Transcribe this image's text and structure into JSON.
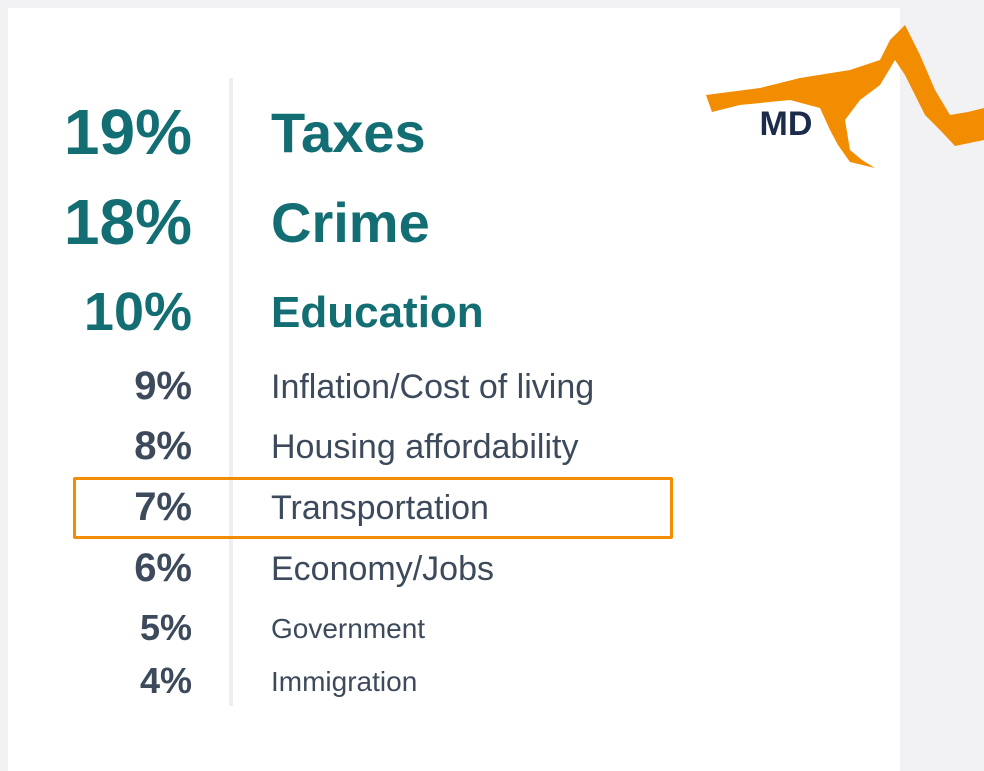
{
  "state": "MD",
  "items": [
    {
      "percent": "19%",
      "label": "Taxes"
    },
    {
      "percent": "18%",
      "label": "Crime"
    },
    {
      "percent": "10%",
      "label": "Education"
    },
    {
      "percent": "9%",
      "label": "Inflation/Cost of living"
    },
    {
      "percent": "8%",
      "label": "Housing affordability"
    },
    {
      "percent": "7%",
      "label": "Transportation",
      "highlighted": true
    },
    {
      "percent": "6%",
      "label": "Economy/Jobs"
    },
    {
      "percent": "5%",
      "label": "Government"
    },
    {
      "percent": "4%",
      "label": "Immigration"
    }
  ]
}
